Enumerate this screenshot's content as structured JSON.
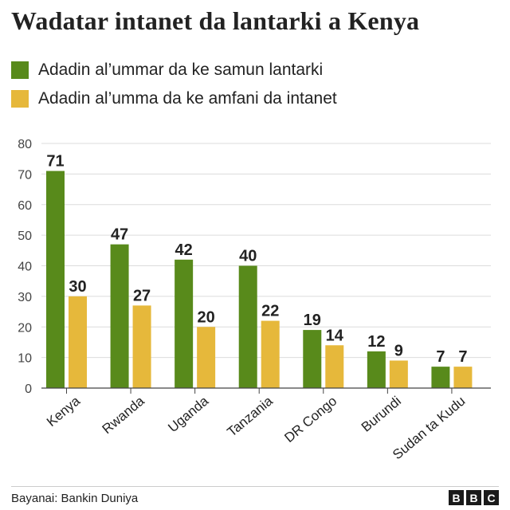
{
  "title": "Wadatar intanet da lantarki a Kenya",
  "legend": [
    {
      "label": "Adadin al’ummar da ke samun lantarki",
      "color": "#588a1b"
    },
    {
      "label": "Adadin al’umma da ke amfani da intanet",
      "color": "#e6b83b"
    }
  ],
  "source": "Bayanai: Bankin Duniya",
  "brand": [
    "B",
    "B",
    "C"
  ],
  "chart_data": {
    "type": "bar",
    "categories": [
      "Kenya",
      "Rwanda",
      "Uganda",
      "Tanzania",
      "DR Congo",
      "Burundi",
      "Sudan ta Kudu"
    ],
    "series": [
      {
        "name": "Adadin al’ummar da ke samun lantarki",
        "values": [
          71,
          47,
          42,
          40,
          19,
          12,
          7
        ],
        "color": "#588a1b"
      },
      {
        "name": "Adadin al’umma da ke amfani da intanet",
        "values": [
          30,
          27,
          20,
          22,
          14,
          9,
          7
        ],
        "color": "#e6b83b"
      }
    ],
    "ylim": [
      0,
      80
    ],
    "yticks": [
      0,
      10,
      20,
      30,
      40,
      50,
      60,
      70,
      80
    ],
    "grid": true,
    "legend_position": "top-left"
  }
}
